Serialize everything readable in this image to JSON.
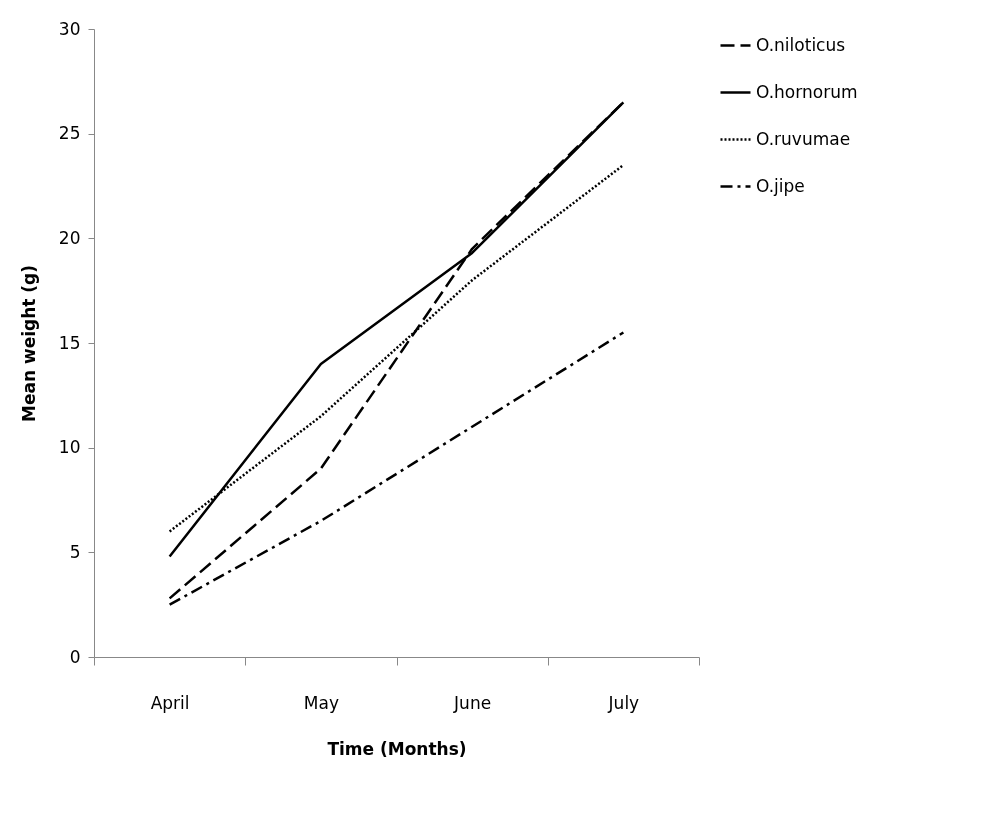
{
  "chart_data": {
    "type": "line",
    "xlabel": "Time (Months)",
    "ylabel": "Mean weight  (g)",
    "categories": [
      "April",
      "May",
      "June",
      "July"
    ],
    "ylim": [
      0,
      30
    ],
    "yticks": [
      0,
      5,
      10,
      15,
      20,
      25,
      30
    ],
    "grid": false,
    "legend": "right",
    "marker": "none",
    "series": [
      {
        "name": "O.niloticus",
        "color": "#000000",
        "line_style": "dashed",
        "values": [
          2.8,
          9,
          19.5,
          26.5
        ]
      },
      {
        "name": "O.hornorum",
        "color": "#000000",
        "line_style": "solid",
        "values": [
          4.8,
          14,
          19.3,
          26.5
        ]
      },
      {
        "name": "O.ruvumae",
        "color": "#000000",
        "line_style": "dotted",
        "values": [
          6,
          11.5,
          18,
          23.5
        ]
      },
      {
        "name": "O.jipe",
        "color": "#000000",
        "line_style": "dashdot",
        "values": [
          2.5,
          6.5,
          11,
          15.5
        ]
      }
    ]
  }
}
